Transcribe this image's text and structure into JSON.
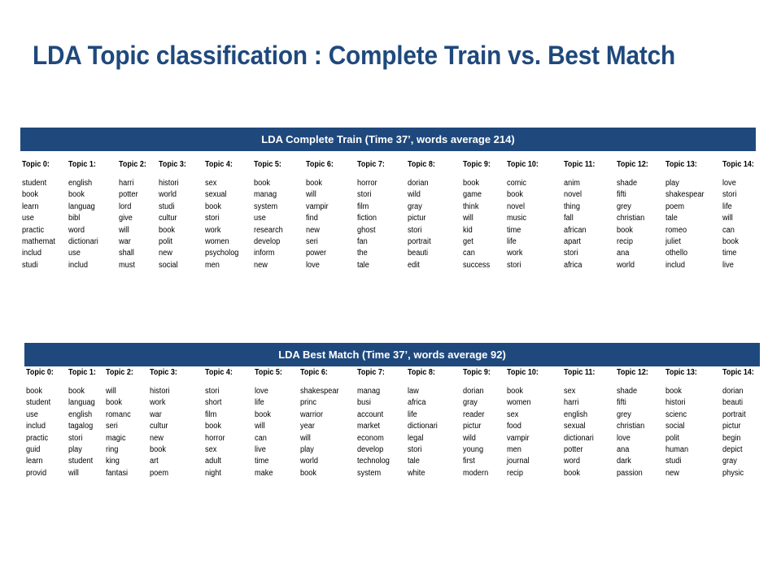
{
  "slide": {
    "title": "LDA Topic classification : Complete Train vs. Best Match"
  },
  "complete_train": {
    "header": "LDA Complete Train (Time 37’,  words average 214)",
    "topics": [
      {
        "label": "Topic 0:",
        "words": [
          "student",
          "book",
          "learn",
          "use",
          "practic",
          "mathemat",
          "includ",
          "studi"
        ]
      },
      {
        "label": "Topic 1:",
        "words": [
          "english",
          "book",
          "languag",
          "bibl",
          "word",
          "dictionari",
          "use",
          "includ"
        ]
      },
      {
        "label": "Topic 2:",
        "words": [
          "harri",
          "potter",
          "lord",
          "give",
          "will",
          "war",
          "shall",
          "must"
        ]
      },
      {
        "label": "Topic 3:",
        "words": [
          "histori",
          "world",
          "studi",
          "cultur",
          "book",
          "polit",
          "new",
          "social"
        ]
      },
      {
        "label": "Topic 4:",
        "words": [
          "sex",
          "sexual",
          "book",
          "stori",
          "work",
          "women",
          "psycholog",
          "men"
        ]
      },
      {
        "label": "Topic 5:",
        "words": [
          "book",
          "manag",
          "system",
          "use",
          "research",
          "develop",
          "inform",
          "new"
        ]
      },
      {
        "label": "Topic 6:",
        "words": [
          "book",
          "will",
          "vampir",
          "find",
          "new",
          "seri",
          "power",
          "love"
        ]
      },
      {
        "label": "Topic 7:",
        "words": [
          "horror",
          "stori",
          "film",
          "fiction",
          "ghost",
          "fan",
          "the",
          "tale"
        ]
      },
      {
        "label": "Topic 8:",
        "words": [
          "dorian",
          "wild",
          "gray",
          "pictur",
          "stori",
          "portrait",
          "beauti",
          "edit"
        ]
      },
      {
        "label": "Topic 9:",
        "words": [
          "book",
          "game",
          "think",
          "will",
          "kid",
          "get",
          "can",
          "success"
        ]
      },
      {
        "label": "Topic 10:",
        "words": [
          "comic",
          "book",
          "novel",
          "music",
          "time",
          "life",
          "work",
          "stori"
        ]
      },
      {
        "label": "Topic 11:",
        "words": [
          "anim",
          "novel",
          "thing",
          "fall",
          "african",
          "apart",
          "stori",
          "africa"
        ]
      },
      {
        "label": "Topic 12:",
        "words": [
          "shade",
          "fifti",
          "grey",
          "christian",
          "book",
          "recip",
          "ana",
          "world"
        ]
      },
      {
        "label": "Topic 13:",
        "words": [
          "play",
          "shakespear",
          "poem",
          "tale",
          "romeo",
          "juliet",
          "othello",
          "includ"
        ]
      },
      {
        "label": "Topic 14:",
        "words": [
          "love",
          "stori",
          "life",
          "will",
          "can",
          "book",
          "time",
          "live"
        ]
      }
    ]
  },
  "best_match": {
    "header": "LDA Best Match (Time 37’, words average  92)",
    "topics": [
      {
        "label": "Topic 0:",
        "words": [
          "book",
          "student",
          "use",
          "includ",
          "practic",
          "guid",
          "learn",
          "provid"
        ]
      },
      {
        "label": "Topic 1:",
        "words": [
          "book",
          "languag",
          "english",
          "tagalog",
          "stori",
          "play",
          "student",
          "will"
        ]
      },
      {
        "label": "Topic 2:",
        "words": [
          "will",
          "book",
          "romanc",
          "seri",
          "magic",
          "ring",
          "king",
          "fantasi"
        ]
      },
      {
        "label": "Topic 3:",
        "words": [
          "histori",
          "work",
          "war",
          "cultur",
          "new",
          "book",
          "art",
          "poem"
        ]
      },
      {
        "label": "Topic 4:",
        "words": [
          "stori",
          "short",
          "film",
          "book",
          "horror",
          "sex",
          "adult",
          "night"
        ]
      },
      {
        "label": "Topic 5:",
        "words": [
          "love",
          "life",
          "book",
          "will",
          "can",
          "live",
          "time",
          "make"
        ]
      },
      {
        "label": "Topic 6:",
        "words": [
          "shakespear",
          "princ",
          "warrior",
          "year",
          "will",
          "play",
          "world",
          "book"
        ]
      },
      {
        "label": "Topic 7:",
        "words": [
          "manag",
          "busi",
          "account",
          "market",
          "econom",
          "develop",
          "technolog",
          "system"
        ]
      },
      {
        "label": "Topic 8:",
        "words": [
          "law",
          "africa",
          "life",
          "dictionari",
          "legal",
          "stori",
          "tale",
          "white"
        ]
      },
      {
        "label": "Topic 9:",
        "words": [
          "dorian",
          "gray",
          "reader",
          "pictur",
          "wild",
          "young",
          "first",
          "modern"
        ]
      },
      {
        "label": "Topic 10:",
        "words": [
          "book",
          "women",
          "sex",
          "food",
          "vampir",
          "men",
          "journal",
          "recip"
        ]
      },
      {
        "label": "Topic 11:",
        "words": [
          "sex",
          "harri",
          "english",
          "sexual",
          "dictionari",
          "potter",
          "word",
          "book"
        ]
      },
      {
        "label": "Topic 12:",
        "words": [
          "shade",
          "fifti",
          "grey",
          "christian",
          "love",
          "ana",
          "dark",
          "passion"
        ]
      },
      {
        "label": "Topic 13:",
        "words": [
          "book",
          "histori",
          "scienc",
          "social",
          "polit",
          "human",
          "studi",
          "new"
        ]
      },
      {
        "label": "Topic 14:",
        "words": [
          "dorian",
          "beauti",
          "portrait",
          "pictur",
          "begin",
          "depict",
          "gray",
          "physic"
        ]
      }
    ]
  }
}
